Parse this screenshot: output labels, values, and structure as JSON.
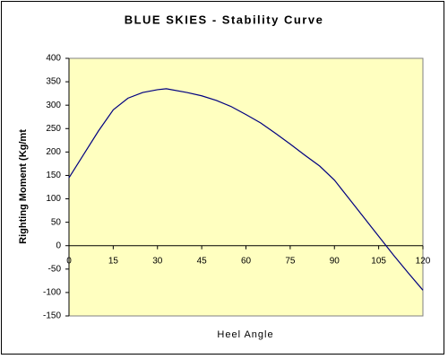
{
  "chart_data": {
    "type": "line",
    "title": "BLUE SKIES - Stability Curve",
    "x_label": "Heel Angle",
    "y_label": "Righting Moment (Kg/mt",
    "x": [
      0,
      5,
      10,
      15,
      20,
      25,
      30,
      33,
      40,
      45,
      50,
      55,
      60,
      65,
      70,
      75,
      80,
      85,
      90,
      95,
      100,
      105,
      110,
      115,
      120
    ],
    "series": [
      {
        "color": "#000080",
        "values": [
          145,
          195,
          245,
          290,
          315,
          327,
          333,
          335,
          327,
          320,
          310,
          297,
          280,
          262,
          240,
          217,
          193,
          170,
          140,
          100,
          60,
          20,
          -20,
          -58,
          -95
        ]
      }
    ],
    "xlim": [
      0,
      120
    ],
    "xticks": [
      0,
      15,
      30,
      45,
      60,
      75,
      90,
      105,
      120
    ],
    "ylim": [
      -150,
      400
    ],
    "yticks": [
      -150,
      -100,
      -50,
      0,
      50,
      100,
      150,
      200,
      250,
      300,
      350,
      400
    ],
    "plot_background": "#ffffc0"
  }
}
